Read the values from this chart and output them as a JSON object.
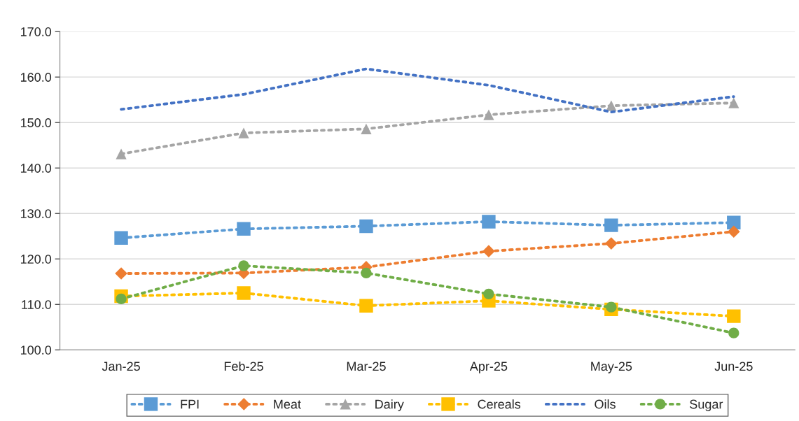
{
  "chart_data": {
    "type": "line",
    "categories": [
      "Jan-25",
      "Feb-25",
      "Mar-25",
      "Apr-25",
      "May-25",
      "Jun-25"
    ],
    "series": [
      {
        "name": "FPI",
        "color": "#5b9bd5",
        "marker": "square",
        "values": [
          124.6,
          126.6,
          127.2,
          128.2,
          127.4,
          128.0
        ]
      },
      {
        "name": "Meat",
        "color": "#ed7d31",
        "marker": "diamond",
        "values": [
          116.8,
          116.9,
          118.2,
          121.7,
          123.4,
          126.0
        ]
      },
      {
        "name": "Dairy",
        "color": "#a5a5a5",
        "marker": "triangle",
        "values": [
          143.1,
          147.7,
          148.6,
          151.7,
          153.7,
          154.3
        ]
      },
      {
        "name": "Cereals",
        "color": "#ffc000",
        "marker": "square",
        "values": [
          111.8,
          112.5,
          109.7,
          110.8,
          108.9,
          107.4
        ]
      },
      {
        "name": "Oils",
        "color": "#4472c4",
        "marker": "none",
        "values": [
          152.9,
          156.2,
          161.8,
          158.2,
          152.3,
          155.7
        ]
      },
      {
        "name": "Sugar",
        "color": "#70ad47",
        "marker": "circle",
        "values": [
          111.2,
          118.5,
          116.9,
          112.3,
          109.4,
          103.7
        ]
      }
    ],
    "ylim": [
      100,
      170
    ],
    "yticks": [
      {
        "value": 100,
        "label": "100.0"
      },
      {
        "value": 110,
        "label": "110.0"
      },
      {
        "value": 120,
        "label": "120.0"
      },
      {
        "value": 130,
        "label": "130.0"
      },
      {
        "value": 140,
        "label": "140.0"
      },
      {
        "value": 150,
        "label": "150.0"
      },
      {
        "value": 160,
        "label": "160.0"
      },
      {
        "value": 170,
        "label": "170.0"
      }
    ],
    "grid": "y",
    "legend": "bottom",
    "line_style": "dotted"
  }
}
